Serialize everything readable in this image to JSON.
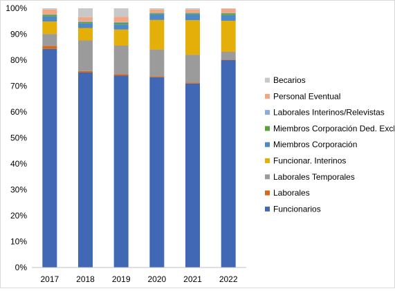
{
  "chart_data": {
    "type": "bar",
    "stacked": true,
    "categories": [
      "2017",
      "2018",
      "2019",
      "2020",
      "2021",
      "2022"
    ],
    "ylim": [
      0,
      100
    ],
    "yticks": [
      "0%",
      "10%",
      "20%",
      "30%",
      "40%",
      "50%",
      "60%",
      "70%",
      "80%",
      "90%",
      "100%"
    ],
    "grid": false,
    "legend_position": "right",
    "series": [
      {
        "name": "Funcionarios",
        "color": "#4068b4",
        "values": [
          84.3,
          75.2,
          74.0,
          73.4,
          71.0,
          80.0
        ]
      },
      {
        "name": "Laborales",
        "color": "#d2691e",
        "values": [
          1.2,
          0.6,
          0.6,
          0.4,
          0.4,
          0.2
        ]
      },
      {
        "name": "Laborales Temporales",
        "color": "#9b9b9b",
        "values": [
          4.6,
          11.8,
          11.0,
          10.3,
          10.7,
          3.0
        ]
      },
      {
        "name": "Funcionar. Interinos",
        "color": "#e5af0a",
        "values": [
          4.8,
          4.8,
          6.2,
          11.4,
          13.3,
          12.0
        ]
      },
      {
        "name": "Miembros Corporación",
        "color": "#4f88c7",
        "values": [
          2.0,
          1.8,
          2.0,
          2.2,
          2.3,
          2.2
        ]
      },
      {
        "name": "Miembros Corporación Ded. Excl.",
        "color": "#5aa33a",
        "values": [
          0.6,
          0.5,
          0.6,
          0.4,
          0.4,
          0.6
        ]
      },
      {
        "name": "Laborales Interinos/Relevistas",
        "color": "#8eaadc",
        "values": [
          0.2,
          0.3,
          0.3,
          0.2,
          0.2,
          0.2
        ]
      },
      {
        "name": "Personal Eventual",
        "color": "#f4a582",
        "values": [
          1.8,
          1.6,
          2.0,
          1.2,
          1.2,
          1.6
        ]
      },
      {
        "name": "Becarios",
        "color": "#c8c8c8",
        "values": [
          0.5,
          3.4,
          3.3,
          0.5,
          0.5,
          0.2
        ]
      }
    ],
    "legend_order": [
      "Becarios",
      "Personal Eventual",
      "Laborales Interinos/Relevistas",
      "Miembros Corporación Ded. Excl.",
      "Miembros Corporación",
      "Funcionar. Interinos",
      "Laborales Temporales",
      "Laborales",
      "Funcionarios"
    ]
  }
}
